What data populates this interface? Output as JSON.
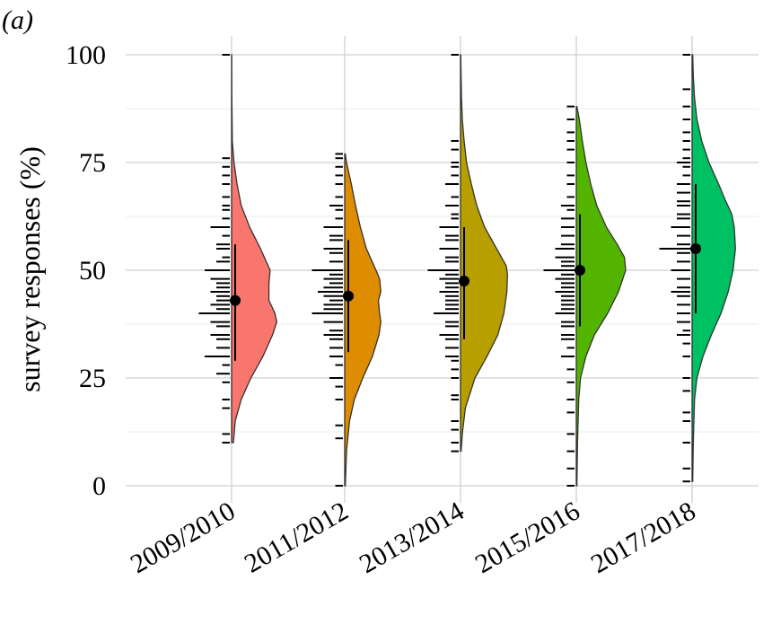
{
  "panel_label": "(a)",
  "chart_data": {
    "type": "violin",
    "title": "",
    "ylabel": "survey responses (%)",
    "xlabel": "",
    "ylim": [
      0,
      100
    ],
    "y_ticks": [
      0,
      25,
      50,
      75,
      100
    ],
    "grid": true,
    "legend": "none",
    "categories": [
      "2009/2010",
      "2011/2012",
      "2013/2014",
      "2015/2016",
      "2017/2018"
    ],
    "series": [
      {
        "category": "2009/2010",
        "color": "#F8766D",
        "mean": 43,
        "range_low": 29,
        "range_high": 56,
        "data_min": 10,
        "data_max": 100,
        "density": [
          [
            10,
            0.15
          ],
          [
            15,
            0.3
          ],
          [
            20,
            0.8
          ],
          [
            25,
            1.6
          ],
          [
            30,
            2.6
          ],
          [
            35,
            3.4
          ],
          [
            38,
            3.75
          ],
          [
            40,
            3.6
          ],
          [
            43,
            3.1
          ],
          [
            47,
            3.1
          ],
          [
            50,
            3.2
          ],
          [
            55,
            2.4
          ],
          [
            60,
            1.5
          ],
          [
            65,
            0.8
          ],
          [
            70,
            0.45
          ],
          [
            75,
            0.2
          ],
          [
            80,
            0.06
          ],
          [
            85,
            0.04
          ],
          [
            90,
            0.02
          ],
          [
            100,
            0.01
          ]
        ],
        "rug": [
          [
            10,
            1
          ],
          [
            12,
            1
          ],
          [
            18,
            1
          ],
          [
            20,
            1
          ],
          [
            24,
            1
          ],
          [
            26,
            2
          ],
          [
            28,
            1
          ],
          [
            30,
            4
          ],
          [
            32,
            2
          ],
          [
            34,
            2
          ],
          [
            35,
            3
          ],
          [
            37,
            2
          ],
          [
            38,
            3
          ],
          [
            40,
            5
          ],
          [
            41,
            2
          ],
          [
            42,
            3
          ],
          [
            43,
            2
          ],
          [
            44,
            2
          ],
          [
            45,
            3
          ],
          [
            46,
            2
          ],
          [
            47,
            2
          ],
          [
            48,
            3
          ],
          [
            50,
            4
          ],
          [
            52,
            2
          ],
          [
            53,
            1
          ],
          [
            55,
            2
          ],
          [
            56,
            2
          ],
          [
            58,
            1
          ],
          [
            60,
            3
          ],
          [
            62,
            1
          ],
          [
            64,
            1
          ],
          [
            65,
            1
          ],
          [
            67,
            1
          ],
          [
            70,
            1
          ],
          [
            72,
            1
          ],
          [
            74,
            1
          ],
          [
            76,
            1
          ],
          [
            100,
            1
          ]
        ]
      },
      {
        "category": "2011/2012",
        "color": "#DE8C00",
        "mean": 44,
        "range_low": 31,
        "range_high": 57,
        "data_min": 0,
        "data_max": 77,
        "density": [
          [
            0,
            0.05
          ],
          [
            8,
            0.15
          ],
          [
            15,
            0.4
          ],
          [
            20,
            0.8
          ],
          [
            25,
            1.5
          ],
          [
            30,
            2.3
          ],
          [
            35,
            2.85
          ],
          [
            38,
            3.0
          ],
          [
            40,
            2.9
          ],
          [
            43,
            2.8
          ],
          [
            45,
            3.0
          ],
          [
            48,
            2.9
          ],
          [
            50,
            2.6
          ],
          [
            55,
            1.8
          ],
          [
            60,
            1.3
          ],
          [
            65,
            0.9
          ],
          [
            70,
            0.55
          ],
          [
            75,
            0.15
          ],
          [
            77,
            0.05
          ]
        ],
        "rug": [
          [
            0,
            1
          ],
          [
            11,
            1
          ],
          [
            14,
            1
          ],
          [
            20,
            1
          ],
          [
            23,
            1
          ],
          [
            25,
            2
          ],
          [
            28,
            1
          ],
          [
            30,
            2
          ],
          [
            32,
            2
          ],
          [
            34,
            2
          ],
          [
            35,
            3
          ],
          [
            36,
            2
          ],
          [
            38,
            3
          ],
          [
            40,
            5
          ],
          [
            41,
            3
          ],
          [
            42,
            3
          ],
          [
            43,
            2
          ],
          [
            44,
            3
          ],
          [
            45,
            4
          ],
          [
            46,
            3
          ],
          [
            47,
            2
          ],
          [
            48,
            3
          ],
          [
            49,
            2
          ],
          [
            50,
            5
          ],
          [
            52,
            2
          ],
          [
            54,
            2
          ],
          [
            55,
            3
          ],
          [
            57,
            2
          ],
          [
            58,
            2
          ],
          [
            60,
            3
          ],
          [
            62,
            1
          ],
          [
            64,
            1
          ],
          [
            65,
            2
          ],
          [
            67,
            1
          ],
          [
            70,
            1
          ],
          [
            72,
            1
          ],
          [
            74,
            1
          ],
          [
            76,
            1
          ],
          [
            77,
            1
          ]
        ]
      },
      {
        "category": "2013/2014",
        "color": "#B79F00",
        "mean": 47.5,
        "range_low": 34,
        "range_high": 60,
        "data_min": 8,
        "data_max": 100,
        "density": [
          [
            8,
            0.05
          ],
          [
            12,
            0.15
          ],
          [
            18,
            0.4
          ],
          [
            25,
            1.2
          ],
          [
            30,
            2.2
          ],
          [
            35,
            3.1
          ],
          [
            40,
            3.6
          ],
          [
            45,
            3.85
          ],
          [
            49,
            3.9
          ],
          [
            51,
            3.8
          ],
          [
            55,
            3.0
          ],
          [
            60,
            2.0
          ],
          [
            65,
            1.35
          ],
          [
            70,
            0.9
          ],
          [
            75,
            0.5
          ],
          [
            80,
            0.3
          ],
          [
            85,
            0.15
          ],
          [
            90,
            0.08
          ],
          [
            95,
            0.05
          ],
          [
            100,
            0.02
          ]
        ],
        "rug": [
          [
            8,
            1
          ],
          [
            10,
            1
          ],
          [
            13,
            1
          ],
          [
            15,
            1
          ],
          [
            20,
            1
          ],
          [
            21,
            1
          ],
          [
            25,
            1
          ],
          [
            27,
            1
          ],
          [
            29,
            1
          ],
          [
            30,
            2
          ],
          [
            32,
            2
          ],
          [
            34,
            2
          ],
          [
            35,
            3
          ],
          [
            37,
            2
          ],
          [
            38,
            2
          ],
          [
            40,
            4
          ],
          [
            41,
            2
          ],
          [
            42,
            2
          ],
          [
            43,
            2
          ],
          [
            44,
            2
          ],
          [
            45,
            3
          ],
          [
            46,
            2
          ],
          [
            47,
            2
          ],
          [
            48,
            3
          ],
          [
            49,
            2
          ],
          [
            50,
            5
          ],
          [
            52,
            2
          ],
          [
            53,
            2
          ],
          [
            55,
            3
          ],
          [
            57,
            2
          ],
          [
            58,
            2
          ],
          [
            60,
            3
          ],
          [
            62,
            1
          ],
          [
            63,
            1
          ],
          [
            65,
            2
          ],
          [
            67,
            1
          ],
          [
            70,
            2
          ],
          [
            72,
            1
          ],
          [
            74,
            1
          ],
          [
            75,
            1
          ],
          [
            78,
            1
          ],
          [
            80,
            1
          ],
          [
            100,
            1
          ]
        ]
      },
      {
        "category": "2015/2016",
        "color": "#53B400",
        "mean": 50,
        "range_low": 37,
        "range_high": 63,
        "data_min": 0,
        "data_max": 88,
        "density": [
          [
            0,
            0.05
          ],
          [
            10,
            0.1
          ],
          [
            20,
            0.2
          ],
          [
            25,
            0.35
          ],
          [
            30,
            0.8
          ],
          [
            35,
            1.5
          ],
          [
            40,
            2.6
          ],
          [
            45,
            3.5
          ],
          [
            50,
            4.1
          ],
          [
            53,
            4.0
          ],
          [
            56,
            3.4
          ],
          [
            60,
            2.5
          ],
          [
            65,
            1.7
          ],
          [
            70,
            1.2
          ],
          [
            75,
            0.8
          ],
          [
            80,
            0.5
          ],
          [
            85,
            0.25
          ],
          [
            88,
            0.05
          ]
        ],
        "rug": [
          [
            0,
            1
          ],
          [
            4,
            1
          ],
          [
            8,
            1
          ],
          [
            12,
            1
          ],
          [
            17,
            1
          ],
          [
            20,
            1
          ],
          [
            24,
            1
          ],
          [
            27,
            1
          ],
          [
            30,
            2
          ],
          [
            32,
            1
          ],
          [
            34,
            2
          ],
          [
            35,
            2
          ],
          [
            37,
            2
          ],
          [
            38,
            2
          ],
          [
            40,
            3
          ],
          [
            41,
            2
          ],
          [
            42,
            2
          ],
          [
            43,
            2
          ],
          [
            44,
            2
          ],
          [
            45,
            3
          ],
          [
            46,
            2
          ],
          [
            47,
            2
          ],
          [
            48,
            3
          ],
          [
            49,
            2
          ],
          [
            50,
            5
          ],
          [
            51,
            2
          ],
          [
            52,
            2
          ],
          [
            53,
            3
          ],
          [
            55,
            3
          ],
          [
            56,
            2
          ],
          [
            58,
            2
          ],
          [
            60,
            2
          ],
          [
            62,
            2
          ],
          [
            64,
            1
          ],
          [
            65,
            2
          ],
          [
            67,
            1
          ],
          [
            70,
            1
          ],
          [
            72,
            1
          ],
          [
            75,
            1
          ],
          [
            78,
            1
          ],
          [
            80,
            1
          ],
          [
            82,
            1
          ],
          [
            85,
            1
          ],
          [
            88,
            1
          ]
        ]
      },
      {
        "category": "2017/2018",
        "color": "#00C064",
        "mean": 55,
        "range_low": 40,
        "range_high": 70,
        "data_min": 1,
        "data_max": 100,
        "density": [
          [
            1,
            0.05
          ],
          [
            10,
            0.1
          ],
          [
            20,
            0.2
          ],
          [
            25,
            0.4
          ],
          [
            30,
            0.9
          ],
          [
            35,
            1.6
          ],
          [
            40,
            2.4
          ],
          [
            45,
            3.0
          ],
          [
            50,
            3.4
          ],
          [
            55,
            3.6
          ],
          [
            60,
            3.5
          ],
          [
            63,
            3.3
          ],
          [
            66,
            2.8
          ],
          [
            70,
            2.2
          ],
          [
            75,
            1.4
          ],
          [
            80,
            0.8
          ],
          [
            85,
            0.4
          ],
          [
            90,
            0.2
          ],
          [
            95,
            0.1
          ],
          [
            100,
            0.05
          ]
        ],
        "rug": [
          [
            1,
            1
          ],
          [
            4,
            1
          ],
          [
            10,
            1
          ],
          [
            15,
            1
          ],
          [
            17,
            1
          ],
          [
            22,
            1
          ],
          [
            25,
            1
          ],
          [
            30,
            1
          ],
          [
            33,
            1
          ],
          [
            35,
            2
          ],
          [
            36,
            1
          ],
          [
            38,
            2
          ],
          [
            40,
            2
          ],
          [
            42,
            2
          ],
          [
            44,
            2
          ],
          [
            45,
            3
          ],
          [
            46,
            2
          ],
          [
            48,
            2
          ],
          [
            50,
            3
          ],
          [
            52,
            2
          ],
          [
            54,
            2
          ],
          [
            55,
            5
          ],
          [
            56,
            2
          ],
          [
            58,
            2
          ],
          [
            60,
            3
          ],
          [
            62,
            2
          ],
          [
            63,
            2
          ],
          [
            65,
            2
          ],
          [
            66,
            2
          ],
          [
            68,
            2
          ],
          [
            70,
            2
          ],
          [
            72,
            1
          ],
          [
            74,
            1
          ],
          [
            75,
            2
          ],
          [
            76,
            1
          ],
          [
            78,
            1
          ],
          [
            80,
            1
          ],
          [
            82,
            1
          ],
          [
            85,
            1
          ],
          [
            88,
            1
          ],
          [
            92,
            1
          ],
          [
            100,
            1
          ]
        ]
      }
    ]
  }
}
